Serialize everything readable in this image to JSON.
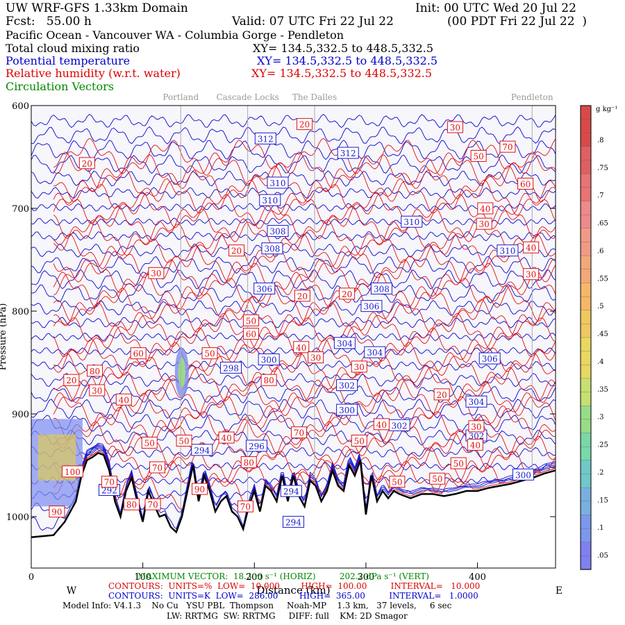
{
  "header": {
    "title_left": "UW WRF-GFS 1.33km Domain",
    "title_right": "Init: 00 UTC Wed 20 Jul 22",
    "fcst": "Fcst:   55.00 h",
    "valid": "Valid: 07 UTC Fri 22 Jul 22",
    "valid_local": "(00 PDT Fri 22 Jul 22  )",
    "region": "Pacific Ocean - Vancouver WA - Columbia Gorge - Pendleton",
    "fields": [
      {
        "label": "Total cloud mixing ratio",
        "xy": "XY= 134.5,332.5 to 448.5,332.5",
        "color": "#000000"
      },
      {
        "label": "Potential temperature",
        "xy": "XY= 134.5,332.5 to 448.5,332.5",
        "color": "#0000cc"
      },
      {
        "label": "Relative humidity (w.r.t. water)",
        "xy": "XY= 134.5,332.5 to 448.5,332.5",
        "color": "#dd0000"
      },
      {
        "label": "Circulation Vectors",
        "xy": "",
        "color": "#008800"
      }
    ]
  },
  "chart_data": {
    "type": "contour-cross-section",
    "locations": [
      {
        "name": "Portland",
        "x": 134
      },
      {
        "name": "Cascade Locks",
        "x": 194
      },
      {
        "name": "The Dalles",
        "x": 254
      },
      {
        "name": "Pendleton",
        "x": 449
      }
    ],
    "xlabel": "Distance (km)",
    "xlim": [
      0,
      470
    ],
    "xticks": [
      0,
      100,
      200,
      300,
      400
    ],
    "direction_left": "W",
    "direction_right": "E",
    "ylabel": "Pressure (hPa)",
    "ylim": [
      1050,
      600
    ],
    "yticks": [
      600,
      700,
      800,
      900,
      1000
    ],
    "terrain_pressure": [
      [
        0,
        1020
      ],
      [
        10,
        1019
      ],
      [
        20,
        1018
      ],
      [
        30,
        1005
      ],
      [
        40,
        985
      ],
      [
        45,
        960
      ],
      [
        50,
        945
      ],
      [
        55,
        942
      ],
      [
        60,
        938
      ],
      [
        65,
        940
      ],
      [
        70,
        955
      ],
      [
        75,
        985
      ],
      [
        80,
        1000
      ],
      [
        85,
        975
      ],
      [
        90,
        962
      ],
      [
        95,
        985
      ],
      [
        100,
        1005
      ],
      [
        105,
        975
      ],
      [
        110,
        988
      ],
      [
        115,
        1000
      ],
      [
        120,
        998
      ],
      [
        125,
        1010
      ],
      [
        130,
        1015
      ],
      [
        135,
        1000
      ],
      [
        140,
        975
      ],
      [
        145,
        950
      ],
      [
        150,
        985
      ],
      [
        155,
        960
      ],
      [
        160,
        975
      ],
      [
        165,
        995
      ],
      [
        170,
        985
      ],
      [
        175,
        980
      ],
      [
        180,
        995
      ],
      [
        185,
        1000
      ],
      [
        190,
        1012
      ],
      [
        195,
        990
      ],
      [
        200,
        975
      ],
      [
        205,
        995
      ],
      [
        210,
        970
      ],
      [
        215,
        975
      ],
      [
        220,
        985
      ],
      [
        225,
        960
      ],
      [
        230,
        985
      ],
      [
        235,
        960
      ],
      [
        240,
        980
      ],
      [
        245,
        990
      ],
      [
        250,
        965
      ],
      [
        255,
        970
      ],
      [
        260,
        985
      ],
      [
        265,
        975
      ],
      [
        270,
        955
      ],
      [
        275,
        970
      ],
      [
        280,
        975
      ],
      [
        285,
        950
      ],
      [
        290,
        960
      ],
      [
        295,
        945
      ],
      [
        300,
        998
      ],
      [
        305,
        960
      ],
      [
        310,
        985
      ],
      [
        315,
        975
      ],
      [
        320,
        982
      ],
      [
        325,
        975
      ],
      [
        330,
        978
      ],
      [
        340,
        982
      ],
      [
        350,
        978
      ],
      [
        360,
        978
      ],
      [
        370,
        980
      ],
      [
        380,
        978
      ],
      [
        390,
        975
      ],
      [
        400,
        975
      ],
      [
        410,
        972
      ],
      [
        420,
        970
      ],
      [
        430,
        968
      ],
      [
        440,
        965
      ],
      [
        450,
        962
      ],
      [
        460,
        958
      ],
      [
        470,
        955
      ]
    ],
    "theta_labels": [
      {
        "value": "312",
        "x": 210,
        "p": 632
      },
      {
        "value": "312",
        "x": 284,
        "p": 646
      },
      {
        "value": "310",
        "x": 221,
        "p": 675
      },
      {
        "value": "310",
        "x": 214,
        "p": 692
      },
      {
        "value": "310",
        "x": 341,
        "p": 713
      },
      {
        "value": "310",
        "x": 427,
        "p": 741
      },
      {
        "value": "308",
        "x": 221,
        "p": 722
      },
      {
        "value": "308",
        "x": 216,
        "p": 739
      },
      {
        "value": "308",
        "x": 314,
        "p": 778
      },
      {
        "value": "306",
        "x": 209,
        "p": 778
      },
      {
        "value": "306",
        "x": 305,
        "p": 795
      },
      {
        "value": "306",
        "x": 411,
        "p": 846
      },
      {
        "value": "304",
        "x": 281,
        "p": 831
      },
      {
        "value": "304",
        "x": 308,
        "p": 840
      },
      {
        "value": "304",
        "x": 399,
        "p": 888
      },
      {
        "value": "302",
        "x": 283,
        "p": 872
      },
      {
        "value": "302",
        "x": 330,
        "p": 911
      },
      {
        "value": "302",
        "x": 399,
        "p": 921
      },
      {
        "value": "300",
        "x": 213,
        "p": 847
      },
      {
        "value": "300",
        "x": 283,
        "p": 896
      },
      {
        "value": "300",
        "x": 441,
        "p": 959
      },
      {
        "value": "298",
        "x": 179,
        "p": 855
      },
      {
        "value": "296",
        "x": 202,
        "p": 931
      },
      {
        "value": "294",
        "x": 153,
        "p": 935
      },
      {
        "value": "294",
        "x": 233,
        "p": 975
      },
      {
        "value": "294",
        "x": 235,
        "p": 1005
      },
      {
        "value": "292",
        "x": 70,
        "p": 974
      }
    ],
    "rh_labels": [
      {
        "value": "20",
        "x": 245,
        "p": 618
      },
      {
        "value": "30",
        "x": 380,
        "p": 621
      },
      {
        "value": "50",
        "x": 401,
        "p": 649
      },
      {
        "value": "70",
        "x": 427,
        "p": 640
      },
      {
        "value": "60",
        "x": 443,
        "p": 676
      },
      {
        "value": "40",
        "x": 407,
        "p": 700
      },
      {
        "value": "30",
        "x": 406,
        "p": 715
      },
      {
        "value": "40",
        "x": 448,
        "p": 738
      },
      {
        "value": "30",
        "x": 448,
        "p": 764
      },
      {
        "value": "20",
        "x": 50,
        "p": 656
      },
      {
        "value": "20",
        "x": 184,
        "p": 741
      },
      {
        "value": "30",
        "x": 112,
        "p": 763
      },
      {
        "value": "20",
        "x": 243,
        "p": 785
      },
      {
        "value": "20",
        "x": 283,
        "p": 783
      },
      {
        "value": "50",
        "x": 197,
        "p": 809
      },
      {
        "value": "60",
        "x": 197,
        "p": 822
      },
      {
        "value": "40",
        "x": 242,
        "p": 835
      },
      {
        "value": "50",
        "x": 160,
        "p": 841
      },
      {
        "value": "60",
        "x": 96,
        "p": 841
      },
      {
        "value": "30",
        "x": 255,
        "p": 845
      },
      {
        "value": "30",
        "x": 294,
        "p": 854
      },
      {
        "value": "80",
        "x": 57,
        "p": 858
      },
      {
        "value": "20",
        "x": 36,
        "p": 867
      },
      {
        "value": "30",
        "x": 59,
        "p": 877
      },
      {
        "value": "80",
        "x": 213,
        "p": 867
      },
      {
        "value": "40",
        "x": 83,
        "p": 886
      },
      {
        "value": "20",
        "x": 368,
        "p": 881
      },
      {
        "value": "40",
        "x": 314,
        "p": 910
      },
      {
        "value": "70",
        "x": 240,
        "p": 918
      },
      {
        "value": "30",
        "x": 399,
        "p": 912
      },
      {
        "value": "50",
        "x": 106,
        "p": 928
      },
      {
        "value": "50",
        "x": 137,
        "p": 926
      },
      {
        "value": "40",
        "x": 175,
        "p": 923
      },
      {
        "value": "50",
        "x": 294,
        "p": 926
      },
      {
        "value": "40",
        "x": 398,
        "p": 930
      },
      {
        "value": "70",
        "x": 113,
        "p": 952
      },
      {
        "value": "80",
        "x": 195,
        "p": 947
      },
      {
        "value": "50",
        "x": 383,
        "p": 948
      },
      {
        "value": "100",
        "x": 37,
        "p": 956
      },
      {
        "value": "70",
        "x": 70,
        "p": 966
      },
      {
        "value": "50",
        "x": 328,
        "p": 966
      },
      {
        "value": "50",
        "x": 364,
        "p": 963
      },
      {
        "value": "90",
        "x": 151,
        "p": 973
      },
      {
        "value": "80",
        "x": 90,
        "p": 988
      },
      {
        "value": "70",
        "x": 109,
        "p": 988
      },
      {
        "value": "70",
        "x": 192,
        "p": 990
      },
      {
        "value": "90",
        "x": 23,
        "p": 995
      }
    ]
  },
  "colorbar": {
    "unit": "g kg⁻¹",
    "labels": [
      ".8",
      ".75",
      ".7",
      ".65",
      ".6",
      ".55",
      ".5",
      ".45",
      ".4",
      ".35",
      ".3",
      ".25",
      ".2",
      ".15",
      ".1",
      ".05"
    ]
  },
  "footer": {
    "max_vector": "MAXIMUM VECTOR:  18.3 m s⁻¹ (HORIZ)         202.2 dPa s⁻¹ (VERT)",
    "contours_rh": "CONTOURS:  UNITS=%  LOW=  10.000        HIGH=  100.00         INTERVAL=   10.000",
    "contours_theta": "CONTOURS:  UNITS=K  LOW=  286.00        HIGH=  365.00         INTERVAL=   1.0000",
    "model_info": "Model Info: V4.1.3    No Cu   YSU PBL  Thompson     Noah-MP    1.3 km,   37 levels,     6 sec",
    "model_info2": "LW: RRTMG  SW: RRTMG     DIFF: full    KM: 2D Smagor"
  }
}
